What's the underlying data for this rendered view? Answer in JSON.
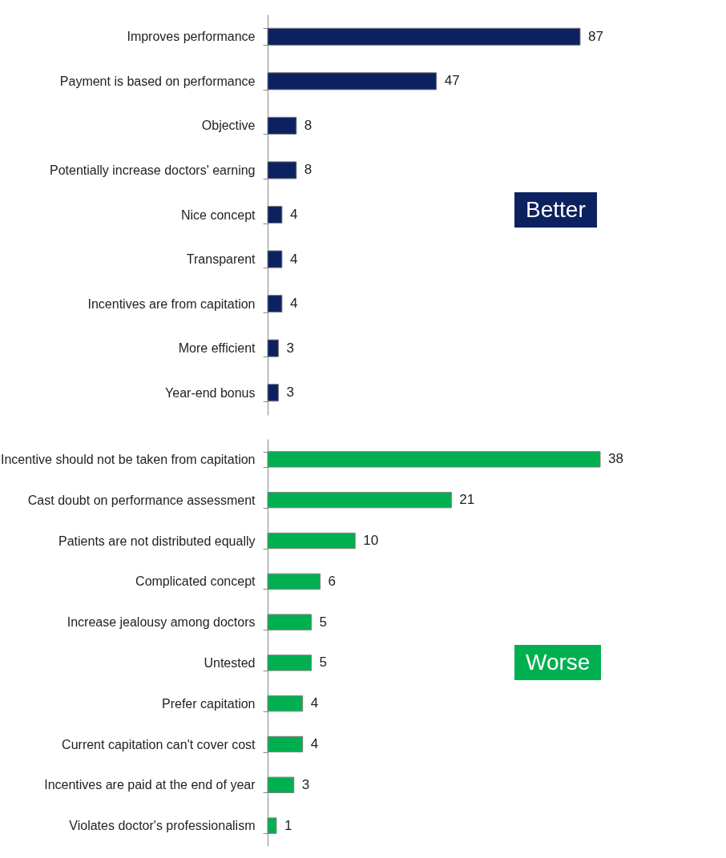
{
  "chart_data": [
    {
      "type": "bar",
      "orientation": "horizontal",
      "categories": [
        "Improves performance",
        "Payment is based on performance",
        "Objective",
        "Potentially increase doctors' earning",
        "Nice concept",
        "Transparent",
        "Incentives are from capitation",
        "More efficient",
        "Year-end bonus"
      ],
      "values": [
        87,
        47,
        8,
        8,
        4,
        4,
        4,
        3,
        3
      ],
      "color": "#0c2260",
      "data_labels": true,
      "annotations": [
        "Better"
      ]
    },
    {
      "type": "bar",
      "orientation": "horizontal",
      "categories": [
        "Incentive should not be taken from capitation",
        "Cast doubt on performance assessment",
        "Patients are not distributed equally",
        "Complicated concept",
        "Increase jealousy among doctors",
        "Untested",
        "Prefer capitation",
        "Current capitation can't cover cost",
        "Incentives are paid at the end of year",
        "Violates doctor's professionalism"
      ],
      "values": [
        38,
        21,
        10,
        6,
        5,
        5,
        4,
        4,
        3,
        1
      ],
      "color": "#00b050",
      "data_labels": true,
      "annotations": [
        "Worse"
      ]
    }
  ]
}
